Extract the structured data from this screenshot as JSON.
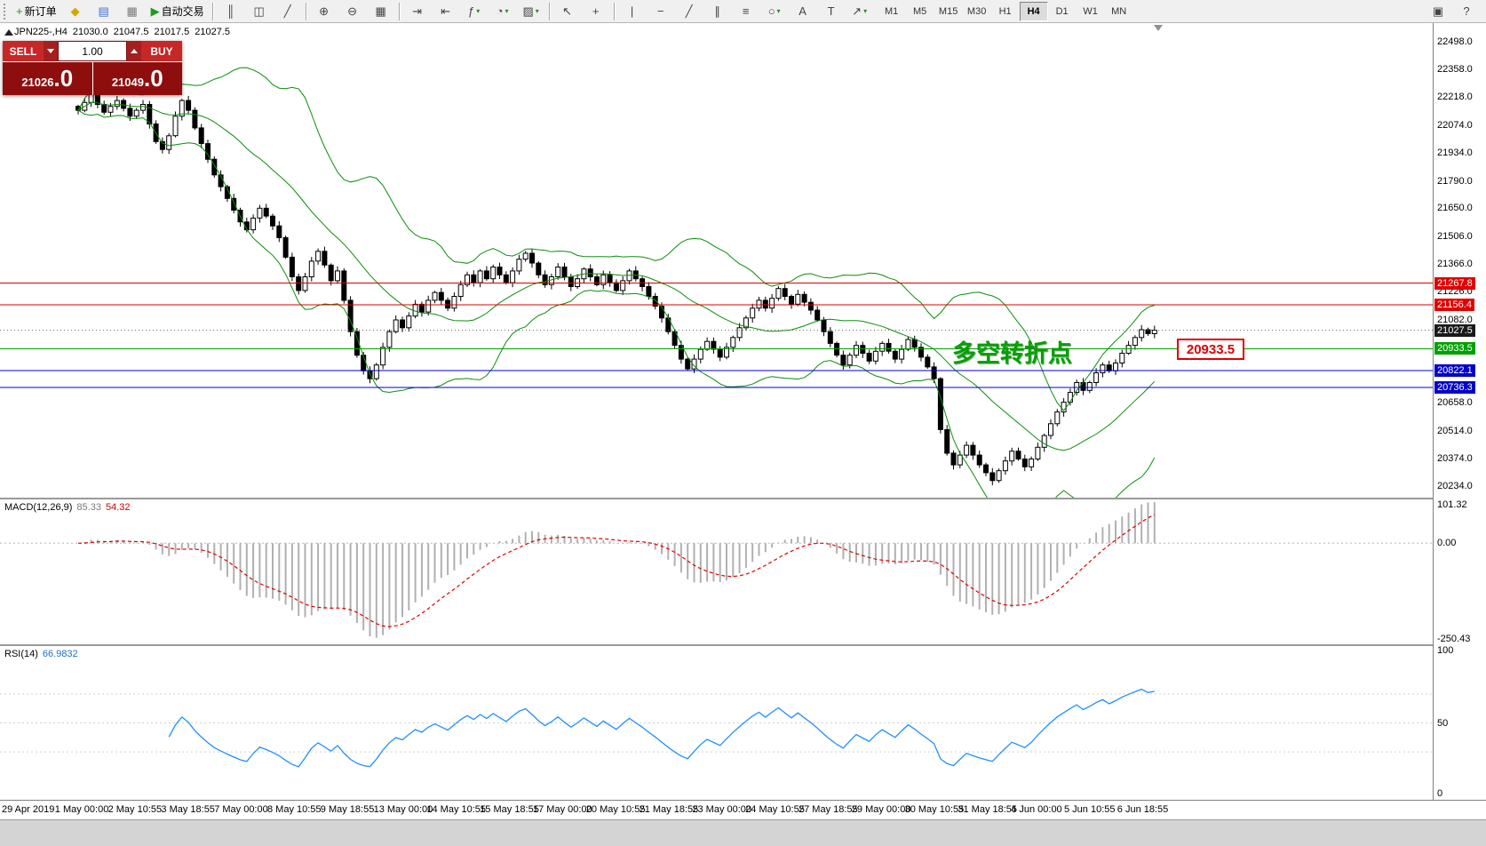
{
  "toolbar": {
    "items": [
      {
        "t": "grip"
      },
      {
        "t": "btn",
        "name": "new-order-button",
        "glyph": "+",
        "color": "#1c9c1c",
        "label": "新订单"
      },
      {
        "t": "btn",
        "name": "metaeditor-button",
        "glyph": "◆",
        "color": "#d9a400"
      },
      {
        "t": "btn",
        "name": "market-watch-button",
        "glyph": "▤",
        "color": "#3a6fd8"
      },
      {
        "t": "btn",
        "name": "navigator-button",
        "glyph": "▦",
        "color": "#7a7a7a"
      },
      {
        "t": "btn",
        "name": "autotrading-button",
        "glyph": "▶",
        "color": "#1c9c1c",
        "label": "自动交易"
      },
      {
        "t": "sep"
      },
      {
        "t": "btn",
        "name": "bars-chart-button",
        "glyph": "║"
      },
      {
        "t": "btn",
        "name": "candlestick-chart-button",
        "glyph": "◫"
      },
      {
        "t": "btn",
        "name": "line-chart-button",
        "glyph": "╱"
      },
      {
        "t": "sep"
      },
      {
        "t": "btn",
        "name": "zoom-in-button",
        "glyph": "⊕"
      },
      {
        "t": "btn",
        "name": "zoom-out-button",
        "glyph": "⊖"
      },
      {
        "t": "btn",
        "name": "tile-windows-button",
        "glyph": "▦"
      },
      {
        "t": "sep"
      },
      {
        "t": "btn",
        "name": "auto-scroll-button",
        "glyph": "⇥"
      },
      {
        "t": "btn",
        "name": "chart-shift-button",
        "glyph": "⇤"
      },
      {
        "t": "btn",
        "name": "indicators-button",
        "glyph": "ƒ",
        "caret": true
      },
      {
        "t": "btn",
        "name": "periods-button",
        "glyph": "◔",
        "caret": true
      },
      {
        "t": "btn",
        "name": "templates-button",
        "glyph": "▨",
        "caret": true
      },
      {
        "t": "sep"
      },
      {
        "t": "btn",
        "name": "cursor-button",
        "glyph": "↖"
      },
      {
        "t": "btn",
        "name": "crosshair-button",
        "glyph": "+"
      },
      {
        "t": "sep"
      },
      {
        "t": "btn",
        "name": "vertical-line-button",
        "glyph": "|"
      },
      {
        "t": "btn",
        "name": "horizontal-line-button",
        "glyph": "−"
      },
      {
        "t": "btn",
        "name": "trendline-button",
        "glyph": "╱"
      },
      {
        "t": "btn",
        "name": "channel-button",
        "glyph": "∥"
      },
      {
        "t": "btn",
        "name": "fibonacci-button",
        "glyph": "≡"
      },
      {
        "t": "btn",
        "name": "shapes-button",
        "glyph": "○",
        "caret": true
      },
      {
        "t": "btn",
        "name": "text-button",
        "glyph": "A"
      },
      {
        "t": "btn",
        "name": "text-label-button",
        "glyph": "T"
      },
      {
        "t": "btn",
        "name": "arrows-button",
        "glyph": "↗",
        "caret": true
      }
    ],
    "timeframes": [
      "M1",
      "M5",
      "M15",
      "M30",
      "H1",
      "H4",
      "D1",
      "W1",
      "MN"
    ],
    "active_timeframe": "H4",
    "right_items": [
      {
        "name": "docking-button",
        "glyph": "▣"
      },
      {
        "name": "help-button",
        "glyph": "?"
      }
    ]
  },
  "chart": {
    "symbol_header": {
      "symbol": "JPN225-,H4",
      "open": "21030.0",
      "high": "21047.5",
      "low": "21017.5",
      "close": "21027.5"
    },
    "one_click": {
      "sell_label": "SELL",
      "buy_label": "BUY",
      "volume": "1.00",
      "sell_price": {
        "main": "21026",
        "big": ".0"
      },
      "buy_price": {
        "main": "21049",
        "big": ".0"
      }
    },
    "hlines": [
      {
        "price": 21267.8,
        "label": "21267.8",
        "color": "#e00000"
      },
      {
        "price": 21156.4,
        "label": "21156.4",
        "color": "#e00000"
      },
      {
        "price": 20933.5,
        "label": "20933.5",
        "color": "#00a000"
      },
      {
        "price": 20822.1,
        "label": "20822.1",
        "color": "#0000c8"
      },
      {
        "price": 20736.3,
        "label": "20736.3",
        "color": "#0000c8"
      }
    ],
    "current_price": {
      "value": 21027.5,
      "label": "21027.5",
      "bg": "#1a1a1a"
    },
    "annotation": {
      "text": "多空转折点",
      "color": "#00a100"
    },
    "callout": {
      "text": "20933.5",
      "color": "#e00000"
    }
  },
  "price_axis": {
    "ticks": [
      "22498.0",
      "22358.0",
      "22218.0",
      "22074.0",
      "21934.0",
      "21790.0",
      "21650.0",
      "21506.0",
      "21366.0",
      "21226.0",
      "21082.0",
      "20658.0",
      "20514.0",
      "20374.0",
      "20234.0"
    ]
  },
  "macd": {
    "label": "MACD(12,26,9)",
    "value_main": "85.33",
    "value_signal": "54.32",
    "axis_labels": [
      "101.32",
      "0.00",
      "-250.43"
    ]
  },
  "rsi": {
    "label": "RSI(14)",
    "value": "66.9832",
    "axis_labels": [
      "100",
      "50",
      "0"
    ]
  },
  "chart_data": {
    "type": "candlestick",
    "symbol": "JPN225-",
    "timeframe": "H4",
    "title": "JPN225- H4 with Bollinger Bands, MACD(12,26,9), RSI(14)",
    "current_ohlc": {
      "open": 21030.0,
      "high": 21047.5,
      "low": 21017.5,
      "close": 21027.5
    },
    "bid": 21026.0,
    "ask": 21049.0,
    "y_axis_range": [
      20173,
      22595
    ],
    "horizontal_levels": [
      21267.8,
      21156.4,
      20933.5,
      20822.1,
      20736.3
    ],
    "closes": [
      22150,
      22190,
      22230,
      22180,
      22140,
      22170,
      22200,
      22160,
      22120,
      22150,
      22180,
      22080,
      21990,
      21950,
      22020,
      22120,
      22200,
      22150,
      22060,
      21980,
      21900,
      21820,
      21760,
      21700,
      21640,
      21580,
      21540,
      21600,
      21650,
      21610,
      21560,
      21500,
      21400,
      21300,
      21230,
      21300,
      21380,
      21430,
      21360,
      21280,
      21330,
      21180,
      21020,
      20900,
      20820,
      20780,
      20850,
      20940,
      21020,
      21080,
      21040,
      21100,
      21160,
      21120,
      21180,
      21220,
      21180,
      21140,
      21200,
      21260,
      21310,
      21270,
      21330,
      21290,
      21350,
      21310,
      21270,
      21330,
      21390,
      21420,
      21370,
      21310,
      21260,
      21300,
      21350,
      21300,
      21250,
      21290,
      21340,
      21300,
      21260,
      21310,
      21270,
      21230,
      21280,
      21330,
      21290,
      21250,
      21200,
      21150,
      21090,
      21020,
      20950,
      20880,
      20830,
      20880,
      20930,
      20970,
      20930,
      20890,
      20940,
      20990,
      21040,
      21090,
      21140,
      21180,
      21140,
      21190,
      21240,
      21200,
      21160,
      21210,
      21170,
      21130,
      21080,
      21020,
      20960,
      20900,
      20850,
      20900,
      20950,
      20910,
      20870,
      20920,
      20960,
      20920,
      20880,
      20930,
      20980,
      20940,
      20890,
      20840,
      20780,
      20520,
      20400,
      20340,
      20390,
      20440,
      20390,
      20340,
      20300,
      20260,
      20310,
      20360,
      20410,
      20370,
      20330,
      20370,
      20430,
      20490,
      20550,
      20610,
      20660,
      20710,
      20760,
      20720,
      20760,
      20810,
      20850,
      20820,
      20860,
      20910,
      20950,
      20990,
      21030,
      21010,
      21027.5
    ],
    "bollinger": {
      "period": 20,
      "deviation": 2,
      "color": "#0a8f0a"
    },
    "macd": {
      "params": [
        12,
        26,
        9
      ],
      "last_values": [
        85.33,
        54.32
      ],
      "axis_labels": [
        101.32,
        0.0,
        -250.43
      ]
    },
    "rsi": {
      "period": 14,
      "last_value": 66.9832,
      "axis_labels": [
        100,
        50,
        0
      ]
    },
    "x_labels": [
      "29 Apr 2019",
      "1 May 00:00",
      "2 May 10:55",
      "3 May 18:55",
      "7 May 00:00",
      "8 May 10:55",
      "9 May 18:55",
      "13 May 00:00",
      "14 May 10:55",
      "15 May 18:55",
      "17 May 00:00",
      "20 May 10:55",
      "21 May 18:55",
      "23 May 00:00",
      "24 May 10:55",
      "27 May 18:55",
      "29 May 00:00",
      "30 May 10:55",
      "31 May 18:55",
      "4 Jun 00:00",
      "5 Jun 10:55",
      "6 Jun 18:55"
    ]
  }
}
